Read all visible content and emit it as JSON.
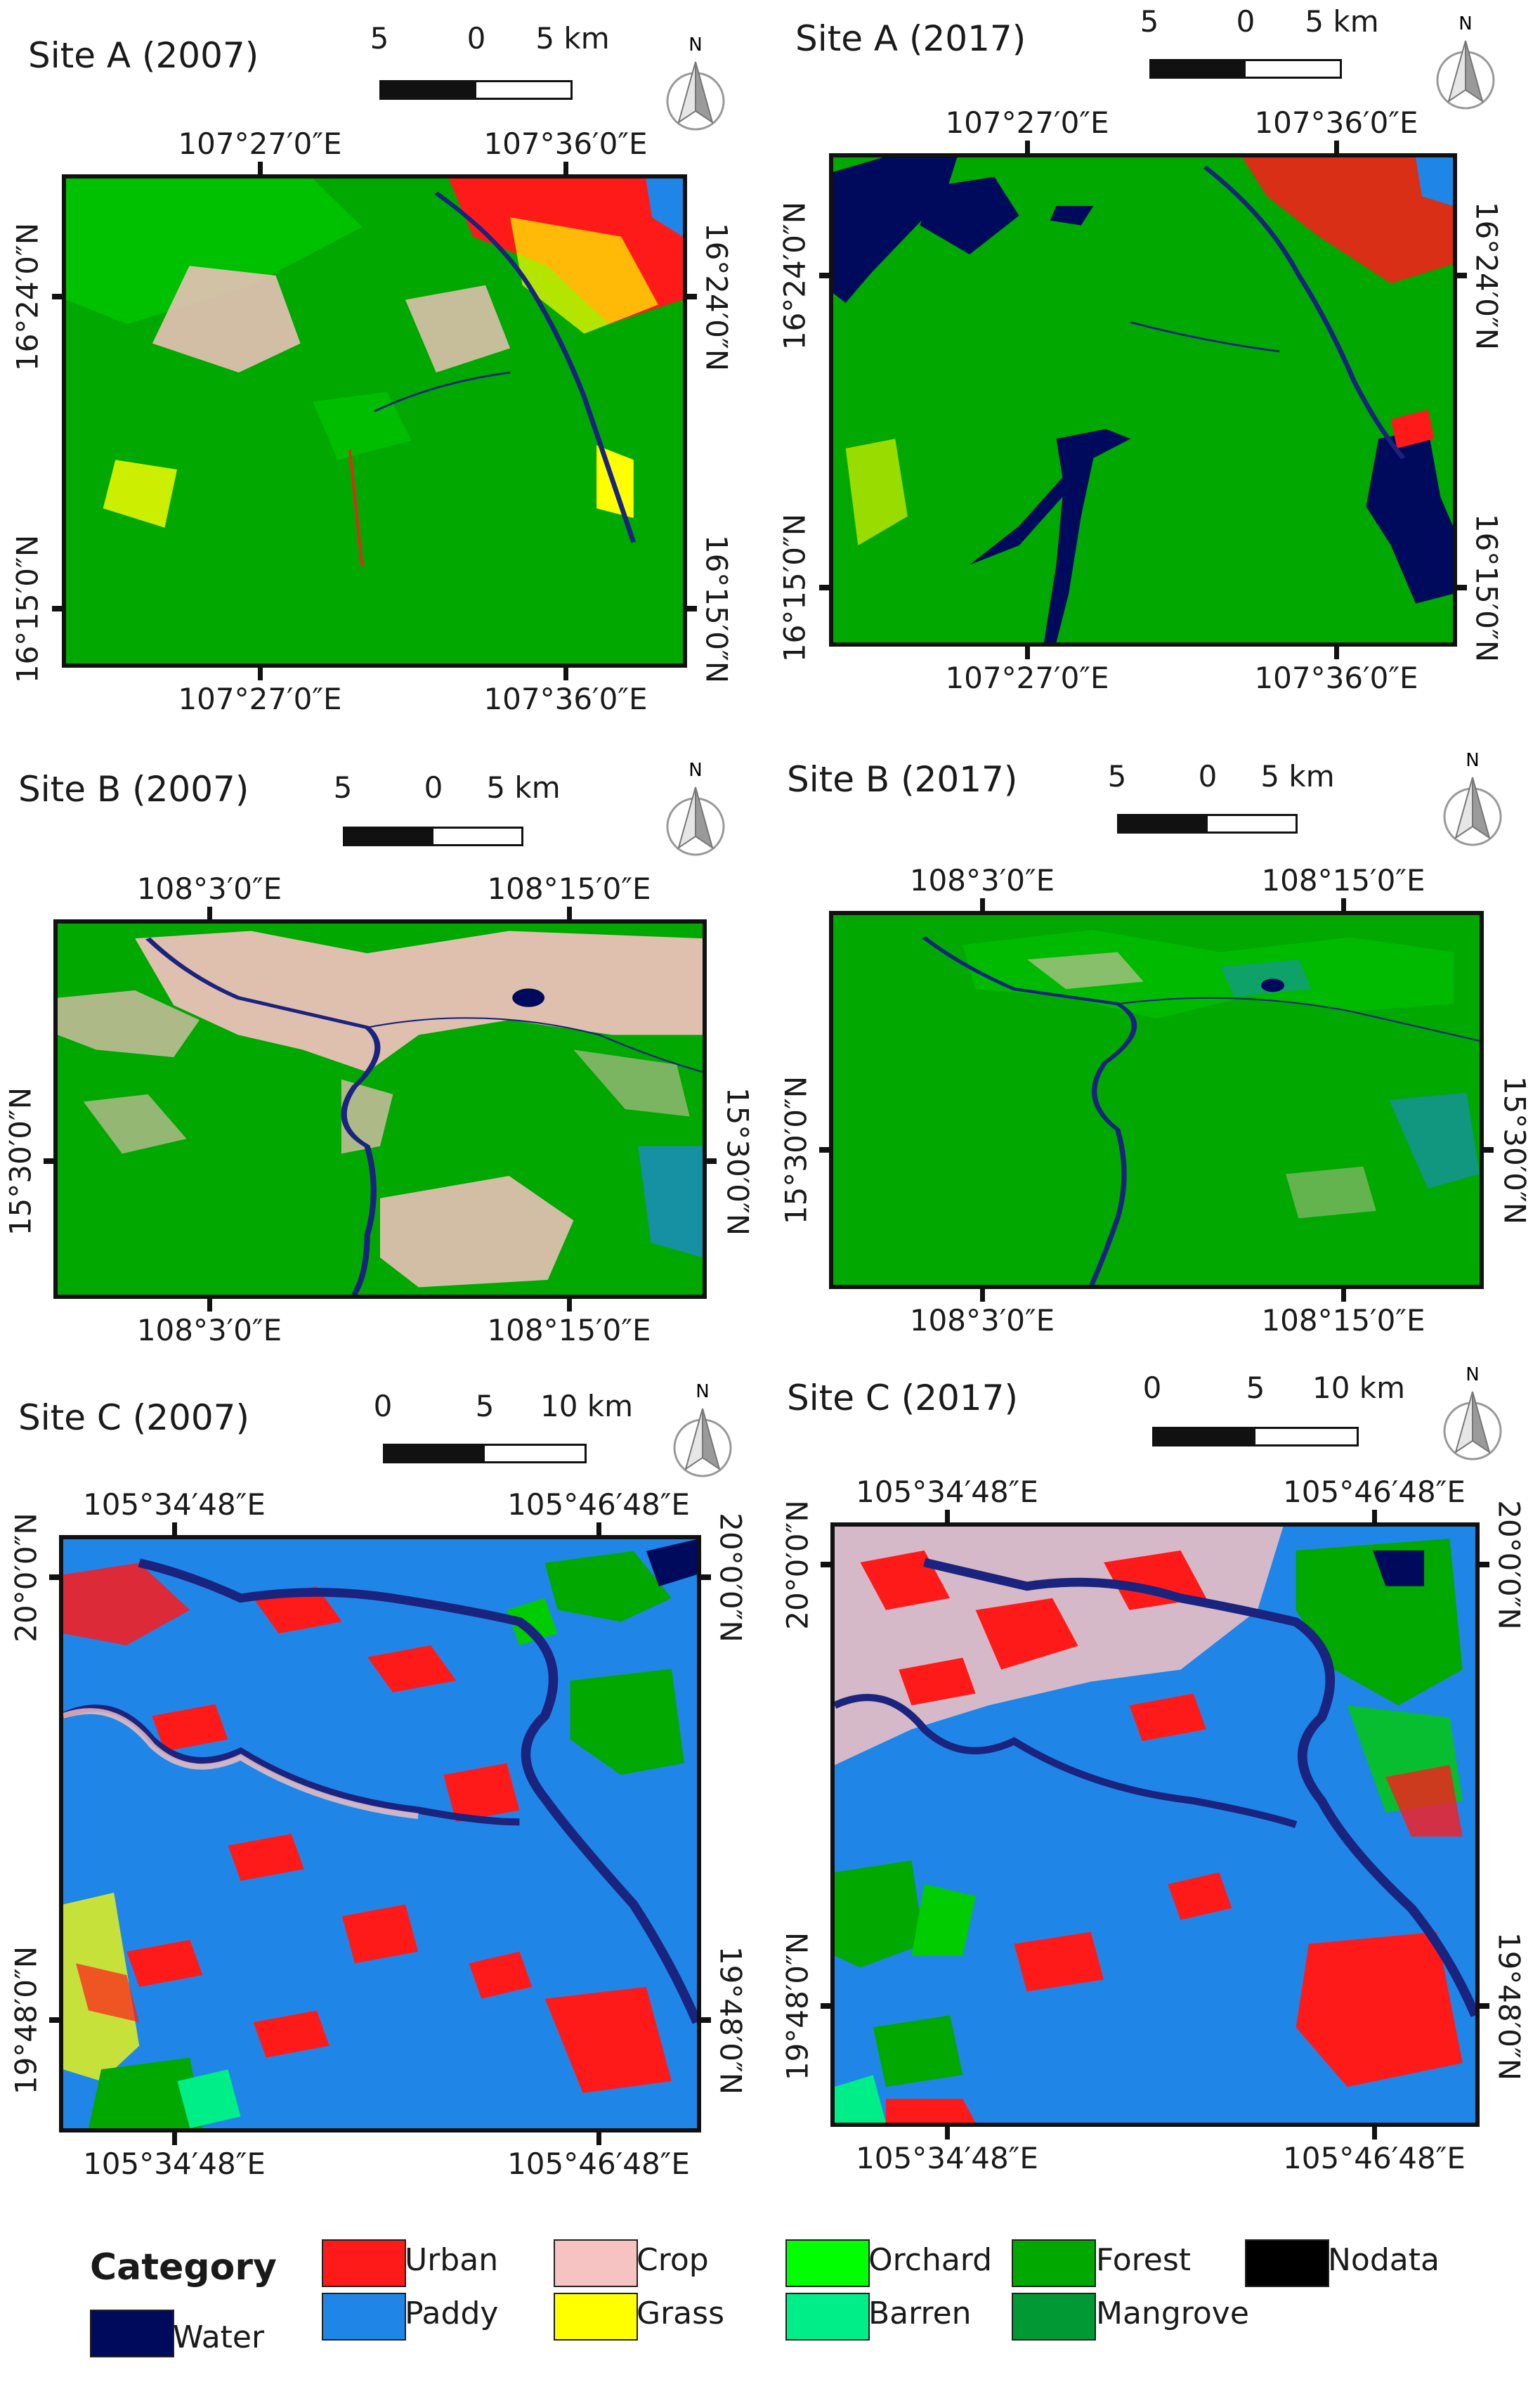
{
  "colors": {
    "urban": "#ff1a1a",
    "paddy": "#1f86e8",
    "crop": "#f7c2c2",
    "grass": "#ffff00",
    "orchard": "#00ff00",
    "barren": "#00ee88",
    "forest": "#00a800",
    "mangrove": "#009933",
    "nodata": "#000000",
    "water": "#000a5c"
  },
  "panels": {
    "a2007": {
      "title": "Site A (2007)",
      "scale": {
        "l0": "5",
        "l1": "0",
        "l2": "5 km"
      },
      "north": "N",
      "top_lon": [
        "107°27′0″E",
        "107°36′0″E"
      ],
      "bottom_lon": [
        "107°27′0″E",
        "107°36′0″E"
      ],
      "lat": [
        "16°24′0″N",
        "16°15′0″N"
      ]
    },
    "a2017": {
      "title": "Site A (2017)",
      "scale": {
        "l0": "5",
        "l1": "0",
        "l2": "5 km"
      },
      "north": "N",
      "top_lon": [
        "107°27′0″E",
        "107°36′0″E"
      ],
      "bottom_lon": [
        "107°27′0″E",
        "107°36′0″E"
      ],
      "lat": [
        "16°24′0″N",
        "16°15′0″N"
      ]
    },
    "b2007": {
      "title": "Site B (2007)",
      "scale": {
        "l0": "5",
        "l1": "0",
        "l2": "5 km"
      },
      "north": "N",
      "top_lon": [
        "108°3′0″E",
        "108°15′0″E"
      ],
      "bottom_lon": [
        "108°3′0″E",
        "108°15′0″E"
      ],
      "lat": [
        "15°30′0″N"
      ]
    },
    "b2017": {
      "title": "Site B (2017)",
      "scale": {
        "l0": "5",
        "l1": "0",
        "l2": "5 km"
      },
      "north": "N",
      "top_lon": [
        "108°3′0″E",
        "108°15′0″E"
      ],
      "bottom_lon": [
        "108°3′0″E",
        "108°15′0″E"
      ],
      "lat": [
        "15°30′0″N"
      ]
    },
    "c2007": {
      "title": "Site C (2007)",
      "scale": {
        "l0": "0",
        "l1": "5",
        "l2": "10 km"
      },
      "north": "N",
      "top_lon": [
        "105°34′48″E",
        "105°46′48″E"
      ],
      "bottom_lon": [
        "105°34′48″E",
        "105°46′48″E"
      ],
      "lat": [
        "20°0′0″N",
        "19°48′0″N"
      ]
    },
    "c2017": {
      "title": "Site C (2017)",
      "scale": {
        "l0": "0",
        "l1": "5",
        "l2": "10 km"
      },
      "north": "N",
      "top_lon": [
        "105°34′48″E",
        "105°46′48″E"
      ],
      "bottom_lon": [
        "105°34′48″E",
        "105°46′48″E"
      ],
      "lat": [
        "20°0′0″N",
        "19°48′0″N"
      ]
    }
  },
  "legend": {
    "title": "Category",
    "items": {
      "urban": "Urban",
      "paddy": "Paddy",
      "crop": "Crop",
      "grass": "Grass",
      "orchard": "Orchard",
      "barren": "Barren",
      "forest": "Forest",
      "mangrove": "Mangrove",
      "nodata": "Nodata",
      "water": "Water"
    }
  }
}
